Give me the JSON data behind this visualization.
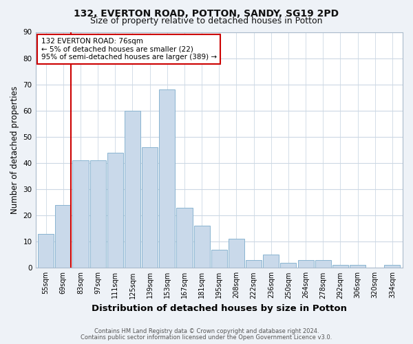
{
  "title1": "132, EVERTON ROAD, POTTON, SANDY, SG19 2PD",
  "title2": "Size of property relative to detached houses in Potton",
  "xlabel": "Distribution of detached houses by size in Potton",
  "ylabel": "Number of detached properties",
  "bar_labels": [
    "55sqm",
    "69sqm",
    "83sqm",
    "97sqm",
    "111sqm",
    "125sqm",
    "139sqm",
    "153sqm",
    "167sqm",
    "181sqm",
    "195sqm",
    "208sqm",
    "222sqm",
    "236sqm",
    "250sqm",
    "264sqm",
    "278sqm",
    "292sqm",
    "306sqm",
    "320sqm",
    "334sqm"
  ],
  "bar_heights": [
    13,
    24,
    41,
    41,
    44,
    60,
    46,
    68,
    23,
    16,
    7,
    11,
    3,
    5,
    2,
    3,
    3,
    1,
    1,
    0,
    1
  ],
  "bar_color": "#c9d9ea",
  "bar_edgecolor": "#89b4d0",
  "bar_linewidth": 0.7,
  "ylim": [
    0,
    90
  ],
  "yticks": [
    0,
    10,
    20,
    30,
    40,
    50,
    60,
    70,
    80,
    90
  ],
  "vline_x_index": 1.45,
  "vline_color": "#cc0000",
  "annotation_line1": "132 EVERTON ROAD: 76sqm",
  "annotation_line2": "← 5% of detached houses are smaller (22)",
  "annotation_line3": "95% of semi-detached houses are larger (389) →",
  "footer1": "Contains HM Land Registry data © Crown copyright and database right 2024.",
  "footer2": "Contains public sector information licensed under the Open Government Licence v3.0.",
  "bg_color": "#eef2f7",
  "plot_bg_color": "#ffffff",
  "grid_color": "#ccd8e4",
  "title1_fontsize": 10,
  "title2_fontsize": 9,
  "xlabel_fontsize": 9.5,
  "ylabel_fontsize": 8.5,
  "tick_fontsize": 7,
  "footer_fontsize": 6,
  "annot_fontsize": 7.5
}
